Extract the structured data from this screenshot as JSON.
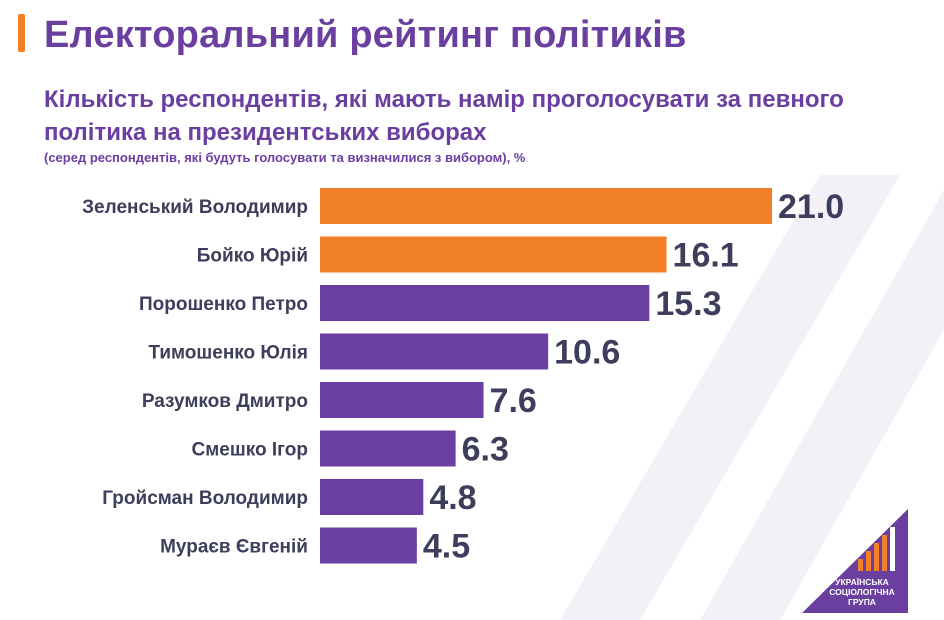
{
  "header": {
    "title": "Електоральний рейтинг політиків",
    "subtitle": "Кількість респондентів, які мають намір проголосувати за певного політика на президентських виборах",
    "note": "(серед респондентів, які будуть голосувати  та визначилися з вибором), %"
  },
  "colors": {
    "accent": "#f07f28",
    "primary": "#6b3fa0",
    "bar_orange": "#f07f28",
    "bar_purple": "#6b3fa0",
    "label_text": "#3d3d5c",
    "value_text": "#3d3d5c"
  },
  "chart_data": {
    "type": "bar",
    "orientation": "horizontal",
    "title": "Електоральний рейтинг політиків",
    "subtitle": "Кількість респондентів, які мають намір проголосувати за певного політика на президентських виборах",
    "unit": "%",
    "categories": [
      "Зеленський Володимир",
      "Бойко Юрій",
      "Порошенко Петро",
      "Тимошенко Юлія",
      "Разумков Дмитро",
      "Смешко Ігор",
      "Гройсман Володимир",
      "Мураєв Євгеній"
    ],
    "values": [
      21.0,
      16.1,
      15.3,
      10.6,
      7.6,
      6.3,
      4.8,
      4.5
    ],
    "value_labels": [
      "21.0",
      "16.1",
      "15.3",
      "10.6",
      "7.6",
      "6.3",
      "4.8",
      "4.5"
    ],
    "bar_colors": [
      "#f07f28",
      "#f07f28",
      "#6b3fa0",
      "#6b3fa0",
      "#6b3fa0",
      "#6b3fa0",
      "#6b3fa0",
      "#6b3fa0"
    ],
    "xlim": [
      0,
      21.0
    ],
    "axes_visible": false,
    "grid": false,
    "legend": "none"
  },
  "logo": {
    "line1": "УКРАЇНСЬКА",
    "line2": "СОЦІОЛОГІЧНА",
    "line3": "ГРУПА",
    "icon": "rising-bars-logo-icon"
  }
}
